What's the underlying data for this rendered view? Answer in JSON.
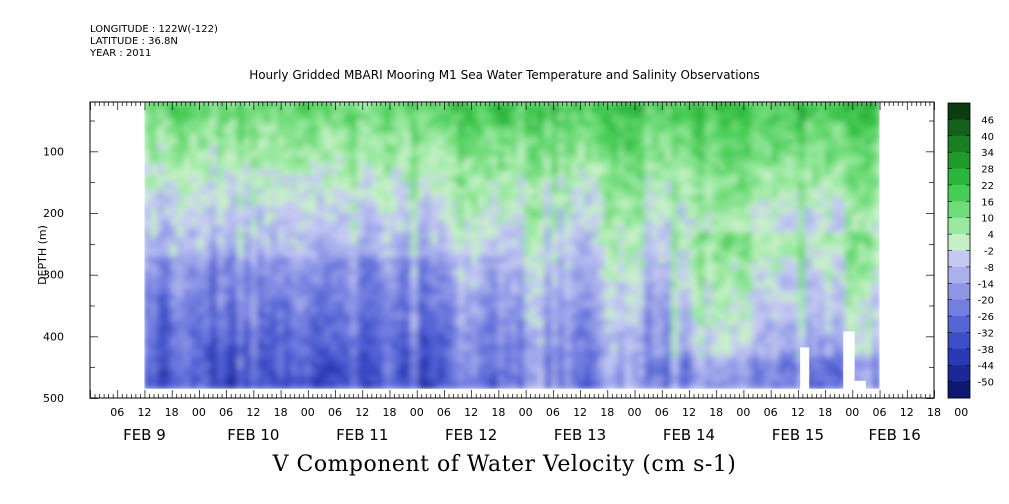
{
  "header": {
    "longitude": "LONGITUDE : 122W(-122)",
    "latitude": "LATITUDE : 36.8N",
    "year": "YEAR : 2011"
  },
  "caption": "V Component of Water Velocity (cm s-1)",
  "chart_data": {
    "type": "heatmap",
    "title": "Hourly Gridded MBARI Mooring M1 Sea Water Temperature and Salinity Observations",
    "ylabel": "DEPTH (m)",
    "xlabel": "",
    "y_reversed": true,
    "ylim": [
      500,
      20
    ],
    "y_ticks": [
      100,
      200,
      300,
      400,
      500
    ],
    "x_range_hours": [
      0,
      186
    ],
    "x_hour_ticks": [
      "06",
      "12",
      "18",
      "00",
      "06",
      "12",
      "18",
      "00",
      "06",
      "12",
      "18",
      "00",
      "06",
      "12",
      "18",
      "00",
      "06",
      "12",
      "18",
      "00",
      "06",
      "12",
      "18",
      "00",
      "06",
      "12",
      "18",
      "00",
      "06",
      "12",
      "18",
      "00"
    ],
    "day_labels": [
      "FEB  9",
      "FEB 10",
      "FEB 11",
      "FEB 12",
      "FEB 13",
      "FEB 14",
      "FEB 15",
      "FEB 16"
    ],
    "colorbar": {
      "levels": [
        46,
        40,
        34,
        28,
        22,
        16,
        10,
        4,
        -2,
        -8,
        -14,
        -20,
        -26,
        -32,
        -38,
        -44,
        -50
      ],
      "colors_top_to_bottom": [
        "#0b3d10",
        "#15601a",
        "#1a7f22",
        "#1f9a2b",
        "#2cb73c",
        "#47cd55",
        "#6fdb79",
        "#9ae9a0",
        "#c7f0c8",
        "#c4c8f2",
        "#a9b0ec",
        "#8e97e6",
        "#727ee0",
        "#5565d6",
        "#3d4ec9",
        "#2b3ab4",
        "#1b2896",
        "#0d1870"
      ]
    },
    "data_extent": {
      "time_start": "FEB 9 12:00",
      "time_end": "FEB 16 06:00",
      "depth_top": 20,
      "depth_bottom": 485
    },
    "pattern": "Near-surface (20-150 m) values mostly positive (green, 4 to 28 cm/s), stronger green from FEB 11 to FEB 16; deeper (250-485 m) values mostly negative (blue/purple, -2 to -26 cm/s) with vertical banding; small gaps near 420-485 m around FEB 14 18:00 and FEB 15 04:00.",
    "grid": false
  }
}
